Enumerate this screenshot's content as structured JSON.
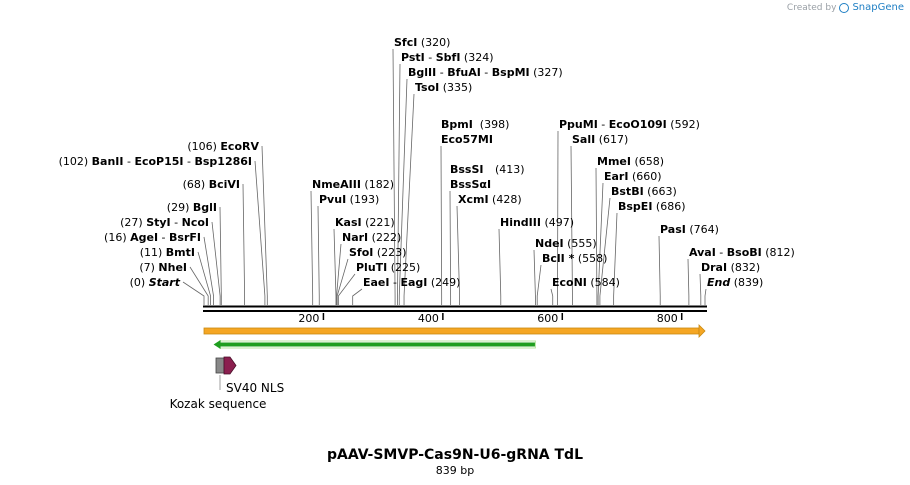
{
  "credit": {
    "prefix": "Created by",
    "brand": "SnapGene",
    "icon": "snapgene-logo-icon"
  },
  "map": {
    "total_bp": 839,
    "title": "pAAV-SMVP-Cas9N-U6-gRNA TdL",
    "length_label": "839 bp",
    "ticks": [
      {
        "value": 200,
        "label": "200"
      },
      {
        "value": 400,
        "label": "400"
      },
      {
        "value": 600,
        "label": "600"
      },
      {
        "value": 800,
        "label": "800"
      }
    ],
    "colors": {
      "backbone": "#000000",
      "orange_bar": "#f5a623",
      "green_arrow": "#1f9e1f",
      "kozak": "#888888",
      "sv40": "#8b1f4f"
    }
  },
  "sites": [
    {
      "pos": 0,
      "pos_label": "(0)",
      "names": [
        "Start"
      ],
      "italic": true,
      "side": "left"
    },
    {
      "pos": 7,
      "pos_label": "(7)",
      "names": [
        "NheI"
      ],
      "side": "left"
    },
    {
      "pos": 11,
      "pos_label": "(11)",
      "names": [
        "BmtI"
      ],
      "side": "left"
    },
    {
      "pos": 16,
      "pos_label": "(16)",
      "names": [
        "AgeI",
        "BsrFI"
      ],
      "side": "left"
    },
    {
      "pos": 27,
      "pos_label": "(27)",
      "names": [
        "StyI",
        "NcoI"
      ],
      "side": "left"
    },
    {
      "pos": 29,
      "pos_label": "(29)",
      "names": [
        "BglI"
      ],
      "side": "left"
    },
    {
      "pos": 68,
      "pos_label": "(68)",
      "names": [
        "BciVI"
      ],
      "side": "left"
    },
    {
      "pos": 102,
      "pos_label": "(102)",
      "names": [
        "BanII",
        "EcoP15I",
        "Bsp1286I"
      ],
      "side": "left"
    },
    {
      "pos": 106,
      "pos_label": "(106)",
      "names": [
        "EcoRV"
      ],
      "side": "left"
    },
    {
      "pos": 182,
      "pos_label": "(182)",
      "names": [
        "NmeAIII"
      ],
      "side": "right"
    },
    {
      "pos": 193,
      "pos_label": "(193)",
      "names": [
        "PvuI"
      ],
      "side": "right"
    },
    {
      "pos": 221,
      "pos_label": "(221)",
      "names": [
        "KasI"
      ],
      "side": "right"
    },
    {
      "pos": 222,
      "pos_label": "(222)",
      "names": [
        "NarI"
      ],
      "side": "right"
    },
    {
      "pos": 223,
      "pos_label": "(223)",
      "names": [
        "SfoI"
      ],
      "side": "right"
    },
    {
      "pos": 225,
      "pos_label": "(225)",
      "names": [
        "PluTI"
      ],
      "side": "right"
    },
    {
      "pos": 249,
      "pos_label": "(249)",
      "names": [
        "EaeI",
        "EagI"
      ],
      "side": "right"
    },
    {
      "pos": 320,
      "pos_label": "(320)",
      "names": [
        "SfcI"
      ],
      "side": "right"
    },
    {
      "pos": 324,
      "pos_label": "(324)",
      "names": [
        "PstI",
        "SbfI"
      ],
      "side": "right"
    },
    {
      "pos": 327,
      "pos_label": "(327)",
      "names": [
        "BglII",
        "BfuAI",
        "BspMI"
      ],
      "side": "right"
    },
    {
      "pos": 335,
      "pos_label": "(335)",
      "names": [
        "TsoI"
      ],
      "side": "right"
    },
    {
      "pos": 398,
      "pos_label": "(398)",
      "names": [
        "BpmI",
        "Eco57MI"
      ],
      "side": "right",
      "stacked": true
    },
    {
      "pos": 413,
      "pos_label": "(413)",
      "names": [
        "BssSI",
        "BssSαI"
      ],
      "side": "right",
      "stacked": true
    },
    {
      "pos": 428,
      "pos_label": "(428)",
      "names": [
        "XcmI"
      ],
      "side": "right"
    },
    {
      "pos": 497,
      "pos_label": "(497)",
      "names": [
        "HindIII"
      ],
      "side": "right"
    },
    {
      "pos": 555,
      "pos_label": "(555)",
      "names": [
        "NdeI"
      ],
      "side": "right"
    },
    {
      "pos": 558,
      "pos_label": "(558)",
      "names": [
        "BclI *"
      ],
      "side": "right"
    },
    {
      "pos": 584,
      "pos_label": "(584)",
      "names": [
        "EcoNI"
      ],
      "side": "right"
    },
    {
      "pos": 592,
      "pos_label": "(592)",
      "names": [
        "PpuMI",
        "EcoO109I"
      ],
      "side": "right"
    },
    {
      "pos": 617,
      "pos_label": "(617)",
      "names": [
        "SalI"
      ],
      "side": "right"
    },
    {
      "pos": 658,
      "pos_label": "(658)",
      "names": [
        "MmeI"
      ],
      "side": "right"
    },
    {
      "pos": 660,
      "pos_label": "(660)",
      "names": [
        "EarI"
      ],
      "side": "right"
    },
    {
      "pos": 663,
      "pos_label": "(663)",
      "names": [
        "BstBI"
      ],
      "side": "right"
    },
    {
      "pos": 686,
      "pos_label": "(686)",
      "names": [
        "BspEI"
      ],
      "side": "right"
    },
    {
      "pos": 764,
      "pos_label": "(764)",
      "names": [
        "PasI"
      ],
      "side": "right"
    },
    {
      "pos": 812,
      "pos_label": "(812)",
      "names": [
        "AvaI",
        "BsoBI"
      ],
      "side": "right"
    },
    {
      "pos": 832,
      "pos_label": "(832)",
      "names": [
        "DraI"
      ],
      "side": "right"
    },
    {
      "pos": 839,
      "pos_label": "(839)",
      "names": [
        "End"
      ],
      "italic": true,
      "side": "right"
    }
  ],
  "features": [
    {
      "name": "orange-feature-bar",
      "label": "",
      "type": "bar",
      "start": 0,
      "end": 839
    },
    {
      "name": "green-feature-arrow",
      "label": "",
      "type": "arrow-left",
      "start": 16,
      "end": 555
    },
    {
      "name": "kozak-sequence",
      "label": "Kozak sequence",
      "type": "box",
      "start": 20,
      "end": 32
    },
    {
      "name": "sv40-nls",
      "label": "SV40 NLS",
      "type": "arrow-right",
      "start": 32,
      "end": 55
    }
  ]
}
